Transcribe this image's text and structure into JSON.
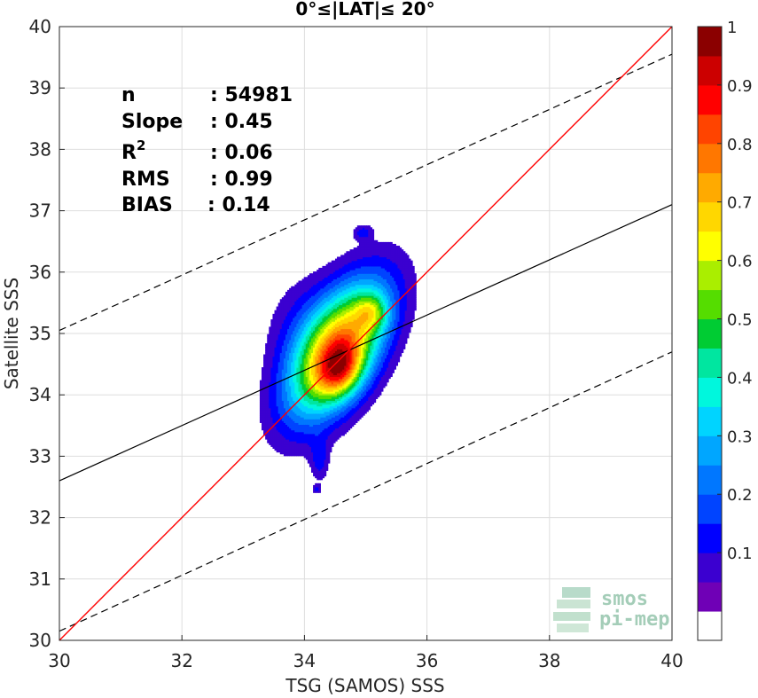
{
  "chart_data": {
    "type": "contour",
    "title": "0°≤|LAT|≤ 20°",
    "xlabel": "TSG (SAMOS) SSS",
    "ylabel": "Satellite SSS",
    "xlim": [
      30,
      40
    ],
    "ylim": [
      30,
      40
    ],
    "xticks": [
      30,
      32,
      34,
      36,
      38,
      40
    ],
    "yticks": [
      30,
      31,
      32,
      33,
      34,
      35,
      36,
      37,
      38,
      39,
      40
    ],
    "grid": true,
    "stats": [
      {
        "label": "n",
        "sep": ": ",
        "value": "54981"
      },
      {
        "label": "Slope",
        "sep": ": ",
        "value": "0.45"
      },
      {
        "label": "R",
        "sup": "2",
        "sep": ": ",
        "value": "0.06"
      },
      {
        "label": "RMS",
        "sep": ": ",
        "value": "0.99"
      },
      {
        "label": "BIAS",
        "sep": ": ",
        "value": "0.14"
      }
    ],
    "lines": {
      "identity": {
        "color": "#ff0000",
        "points": [
          [
            30,
            30
          ],
          [
            40,
            40
          ]
        ]
      },
      "regression": {
        "color": "#000000",
        "points": [
          [
            30,
            32.6
          ],
          [
            40,
            37.1
          ]
        ]
      },
      "bound_upper": {
        "color": "#000000",
        "dashed": true,
        "points": [
          [
            30,
            35.05
          ],
          [
            40,
            39.55
          ]
        ]
      },
      "bound_lower": {
        "color": "#000000",
        "dashed": true,
        "points": [
          [
            30,
            30.15
          ],
          [
            40,
            34.7
          ]
        ]
      }
    },
    "density_peaks": [
      {
        "x": 34.55,
        "y": 34.75,
        "sx": 0.55,
        "sy": 0.75,
        "rho": 0.55,
        "w": 1.0
      },
      {
        "x": 34.6,
        "y": 34.4,
        "sx": 0.25,
        "sy": 0.3,
        "rho": 0.2,
        "w": 0.4
      },
      {
        "x": 35.1,
        "y": 35.35,
        "sx": 0.18,
        "sy": 0.2,
        "rho": 0.0,
        "w": 0.28
      },
      {
        "x": 34.0,
        "y": 35.1,
        "sx": 0.45,
        "sy": 0.6,
        "rho": 0.0,
        "w": 0.1
      },
      {
        "x": 34.95,
        "y": 36.65,
        "sx": 0.1,
        "sy": 0.08,
        "rho": 0.0,
        "w": 0.15
      },
      {
        "x": 34.25,
        "y": 32.95,
        "sx": 0.1,
        "sy": 0.25,
        "rho": 0.0,
        "w": 0.14
      },
      {
        "x": 34.2,
        "y": 32.47,
        "sx": 0.05,
        "sy": 0.05,
        "rho": 0.0,
        "w": 0.12
      }
    ],
    "colorbar": {
      "range": [
        0,
        1
      ],
      "ticks": [
        "0.1",
        "0.2",
        "0.3",
        "0.4",
        "0.5",
        "0.6",
        "0.7",
        "0.8",
        "0.9",
        "1"
      ],
      "colors": [
        "#ffffff",
        "#6f00b6",
        "#3b00d0",
        "#0000ff",
        "#0044ff",
        "#0077ff",
        "#00a6ff",
        "#00d4ff",
        "#00f7dd",
        "#00e6a0",
        "#00cc33",
        "#55dd00",
        "#aaee00",
        "#ffff00",
        "#ffd700",
        "#ffaa00",
        "#ff7700",
        "#ff4400",
        "#ff0000",
        "#cc0000",
        "#8b0000"
      ]
    },
    "watermark": {
      "line1": "smos",
      "line2": "pi-mep"
    }
  }
}
